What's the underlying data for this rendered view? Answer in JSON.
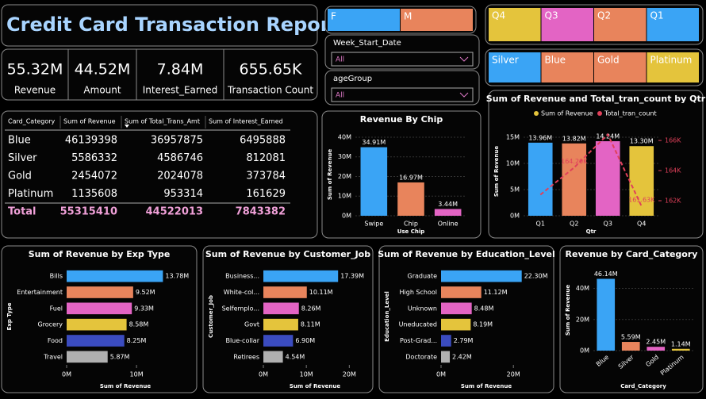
{
  "title": "Credit Card Transaction Report",
  "kpis": [
    {
      "value": "55.32M",
      "label": "Revenue"
    },
    {
      "value": "44.52M",
      "label": "Amount"
    },
    {
      "value": "7.84M",
      "label": "Interest_Earned"
    },
    {
      "value": "655.65K",
      "label": "Transaction Count"
    }
  ],
  "gender_slicer": {
    "options": [
      "F",
      "M"
    ],
    "colors": [
      "#3aa4f5",
      "#e8845c"
    ]
  },
  "quarter_slicer": {
    "options": [
      "Q4",
      "Q3",
      "Q2",
      "Q1"
    ],
    "colors": [
      "#e4c43c",
      "#e364c4",
      "#e8845c",
      "#3aa4f5"
    ]
  },
  "category_slicer": {
    "options": [
      "Silver",
      "Blue",
      "Gold",
      "Platinum"
    ],
    "colors": [
      "#3aa4f5",
      "#e8845c",
      "#e8845c",
      "#e4c43c"
    ]
  },
  "dropdowns": [
    {
      "label": "Week_Start_Date",
      "value": "All"
    },
    {
      "label": "ageGroup",
      "value": "All"
    }
  ],
  "table": {
    "columns": [
      "Card_Category",
      "Sum of Revenue",
      "Sum of Total_Trans_Amt",
      "Sum of Interest_Earned"
    ],
    "rows": [
      [
        "Blue",
        46139398,
        36957875,
        6495888
      ],
      [
        "Silver",
        5586332,
        4586746,
        812081
      ],
      [
        "Gold",
        2454072,
        2024078,
        373784
      ],
      [
        "Platinum",
        1135608,
        953314,
        161629
      ]
    ],
    "total": [
      "Total",
      55315410,
      44522013,
      7843382
    ]
  },
  "chart_data": [
    {
      "type": "bar",
      "title": "Revenue By Chip",
      "xlabel": "Use Chip",
      "ylabel": "Sum of Revenue",
      "categories": [
        "Swipe",
        "Chip",
        "Online"
      ],
      "values": [
        34.91,
        16.97,
        3.44
      ],
      "value_labels": [
        "34.91M",
        "16.97M",
        "3.44M"
      ],
      "colors": [
        "#3aa4f5",
        "#e8845c",
        "#e364c4"
      ],
      "ylim": [
        0,
        42
      ],
      "yticks": [
        {
          "value": 0,
          "label": "0M"
        },
        {
          "value": 10,
          "label": "10M"
        },
        {
          "value": 20,
          "label": "20M"
        },
        {
          "value": 30,
          "label": "30M"
        },
        {
          "value": 40,
          "label": "40M"
        }
      ]
    },
    {
      "type": "combo",
      "title": "Sum of Revenue and Total_tran_count by Qtr",
      "xlabel": "Qtr",
      "ylabel": "Sum of Revenue",
      "categories": [
        "Q1",
        "Q2",
        "Q3",
        "Q4"
      ],
      "series": [
        {
          "name": "Sum of Revenue",
          "color": "#e4c43c",
          "colors": [
            "#3aa4f5",
            "#e8845c",
            "#e364c4",
            "#e4c43c"
          ],
          "values": [
            13.96,
            13.82,
            14.24,
            13.3
          ],
          "value_labels": [
            "13.96M",
            "13.82M",
            "14.24M",
            "13.30M"
          ]
        },
        {
          "name": "Total_tran_count",
          "color": "#e0405a",
          "axis": "y2",
          "values": [
            162.4,
            164.2,
            166.4,
            161.63
          ],
          "value_labels": [
            null,
            "164.20K",
            null,
            "161.63K"
          ]
        }
      ],
      "ylim": [
        0,
        16.97
      ],
      "yticks": [
        {
          "value": 0,
          "label": "0M"
        },
        {
          "value": 5,
          "label": "5M"
        },
        {
          "value": 10,
          "label": "10M"
        },
        {
          "value": 15,
          "label": "15M"
        }
      ],
      "y2lim": [
        161,
        166.9
      ],
      "y2ticks": [
        {
          "value": 162,
          "label": "162K"
        },
        {
          "value": 164,
          "label": "164K"
        },
        {
          "value": 166,
          "label": "166K"
        }
      ]
    },
    {
      "type": "hbar",
      "title": "Sum of Revenue by Exp Type",
      "xlabel": "Sum of Revenue",
      "ylabel": "Exp Type",
      "categories": [
        "Bills",
        "Entertainment",
        "Fuel",
        "Grocery",
        "Food",
        "Travel"
      ],
      "values": [
        13.78,
        9.52,
        9.33,
        8.58,
        8.25,
        5.87
      ],
      "value_labels": [
        "13.78M",
        "9.52M",
        "9.33M",
        "8.58M",
        "8.25M",
        "5.87M"
      ],
      "colors": [
        "#3aa4f5",
        "#e8845c",
        "#e364c4",
        "#e4c43c",
        "#3b4cc0",
        "#b0b0b0"
      ],
      "xlim": [
        0,
        16.8
      ],
      "xticks": [
        {
          "value": 0,
          "label": "0M"
        },
        {
          "value": 10,
          "label": "10M"
        }
      ]
    },
    {
      "type": "hbar",
      "title": "Sum of Revenue by Customer_Job",
      "xlabel": "Sum of Revenue",
      "ylabel": "Customer_Job",
      "categories": [
        "Business...",
        "White-col...",
        "Selfemplo...",
        "Govt",
        "Blue-collar",
        "Retirees"
      ],
      "values": [
        17.39,
        10.11,
        8.26,
        8.11,
        6.9,
        4.54
      ],
      "value_labels": [
        "17.39M",
        "10.11M",
        "8.26M",
        "8.11M",
        "6.90M",
        "4.54M"
      ],
      "colors": [
        "#3aa4f5",
        "#e8845c",
        "#e364c4",
        "#e4c43c",
        "#3b4cc0",
        "#b0b0b0"
      ],
      "xlim": [
        0,
        24
      ],
      "xticks": [
        {
          "value": 0,
          "label": "0M"
        },
        {
          "value": 10,
          "label": "10M"
        },
        {
          "value": 20,
          "label": "20M"
        }
      ]
    },
    {
      "type": "hbar",
      "title": "Sum of Revenue by Education_Level",
      "xlabel": "Sum of Revenue",
      "ylabel": "Education_Level",
      "categories": [
        "Graduate",
        "High School",
        "Unknown",
        "Uneducated",
        "Post-Grad...",
        "Doctorate"
      ],
      "values": [
        22.3,
        11.12,
        8.48,
        8.19,
        2.79,
        2.42
      ],
      "value_labels": [
        "22.30M",
        "11.12M",
        "8.48M",
        "8.19M",
        "2.79M",
        "2.42M"
      ],
      "colors": [
        "#3aa4f5",
        "#e8845c",
        "#e364c4",
        "#e4c43c",
        "#3b4cc0",
        "#b0b0b0"
      ],
      "xlim": [
        0,
        25
      ],
      "xticks": [
        {
          "value": 0,
          "label": "0M"
        },
        {
          "value": 20,
          "label": "20M"
        }
      ]
    },
    {
      "type": "bar",
      "title": "Revenue by Card_Category",
      "xlabel": "Card_Category",
      "ylabel": "Sum of Revenue",
      "rotate_labels": true,
      "categories": [
        "Blue",
        "Silver",
        "Gold",
        "Platinum"
      ],
      "values": [
        46.14,
        5.59,
        2.45,
        1.14
      ],
      "value_labels": [
        "46.14M",
        "5.59M",
        "2.45M",
        "1.14M"
      ],
      "colors": [
        "#3aa4f5",
        "#e8845c",
        "#e364c4",
        "#e4c43c"
      ],
      "ylim": [
        0,
        52
      ],
      "yticks": [
        {
          "value": 0,
          "label": "0M"
        },
        {
          "value": 20,
          "label": "20M"
        },
        {
          "value": 40,
          "label": "40M"
        }
      ]
    }
  ]
}
